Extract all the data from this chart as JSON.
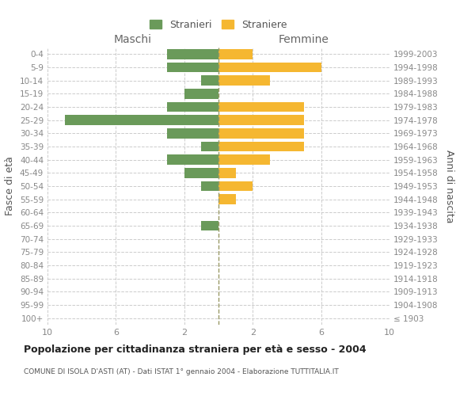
{
  "age_groups": [
    "0-4",
    "5-9",
    "10-14",
    "15-19",
    "20-24",
    "25-29",
    "30-34",
    "35-39",
    "40-44",
    "45-49",
    "50-54",
    "55-59",
    "60-64",
    "65-69",
    "70-74",
    "75-79",
    "80-84",
    "85-89",
    "90-94",
    "95-99",
    "100+"
  ],
  "birth_years": [
    "1999-2003",
    "1994-1998",
    "1989-1993",
    "1984-1988",
    "1979-1983",
    "1974-1978",
    "1969-1973",
    "1964-1968",
    "1959-1963",
    "1954-1958",
    "1949-1953",
    "1944-1948",
    "1939-1943",
    "1934-1938",
    "1929-1933",
    "1924-1928",
    "1919-1923",
    "1914-1918",
    "1909-1913",
    "1904-1908",
    "≤ 1903"
  ],
  "maschi": [
    3,
    3,
    1,
    2,
    3,
    9,
    3,
    1,
    3,
    2,
    1,
    0,
    0,
    1,
    0,
    0,
    0,
    0,
    0,
    0,
    0
  ],
  "femmine": [
    2,
    6,
    3,
    0,
    5,
    5,
    5,
    5,
    3,
    1,
    2,
    1,
    0,
    0,
    0,
    0,
    0,
    0,
    0,
    0,
    0
  ],
  "maschi_color": "#6a9a5a",
  "femmine_color": "#f5b731",
  "title": "Popolazione per cittadinanza straniera per età e sesso - 2004",
  "subtitle": "COMUNE DI ISOLA D'ASTI (AT) - Dati ISTAT 1° gennaio 2004 - Elaborazione TUTTITALIA.IT",
  "legend_stranieri": "Stranieri",
  "legend_straniere": "Straniere",
  "xlabel_left": "Maschi",
  "xlabel_right": "Femmine",
  "ylabel_left": "Fasce di età",
  "ylabel_right": "Anni di nascita",
  "xlim": 10,
  "background_color": "#ffffff",
  "grid_color": "#cccccc"
}
